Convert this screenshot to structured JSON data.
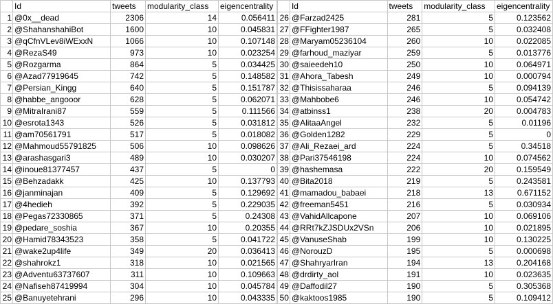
{
  "columns": {
    "rownum": "",
    "id": "Id",
    "tweets": "tweets",
    "modularity_class": "modularity_class",
    "eigencentrality": "eigencentrality"
  },
  "left_rows": [
    {
      "rownum": "1",
      "id": "@0x__dead",
      "tweets": "2306",
      "modularity_class": "14",
      "eigencentrality": "0.056411"
    },
    {
      "rownum": "2",
      "id": "@ShahanshahiBot",
      "tweets": "1600",
      "modularity_class": "10",
      "eigencentrality": "0.045831"
    },
    {
      "rownum": "3",
      "id": "@qCfnVLev8iWExxN",
      "tweets": "1066",
      "modularity_class": "10",
      "eigencentrality": "0.107148"
    },
    {
      "rownum": "4",
      "id": "@RezaS49",
      "tweets": "973",
      "modularity_class": "10",
      "eigencentrality": "0.023254"
    },
    {
      "rownum": "5",
      "id": "@Rozgarma",
      "tweets": "864",
      "modularity_class": "5",
      "eigencentrality": "0.034425"
    },
    {
      "rownum": "6",
      "id": "@Azad77919645",
      "tweets": "742",
      "modularity_class": "5",
      "eigencentrality": "0.148582"
    },
    {
      "rownum": "7",
      "id": "@Persian_Kingg",
      "tweets": "640",
      "modularity_class": "5",
      "eigencentrality": "0.151787"
    },
    {
      "rownum": "8",
      "id": "@habbe_angooor",
      "tweets": "628",
      "modularity_class": "5",
      "eigencentrality": "0.062071"
    },
    {
      "rownum": "9",
      "id": "@MitraIrani87",
      "tweets": "559",
      "modularity_class": "5",
      "eigencentrality": "0.111566"
    },
    {
      "rownum": "10",
      "id": "@esrota1343",
      "tweets": "526",
      "modularity_class": "5",
      "eigencentrality": "0.031812"
    },
    {
      "rownum": "11",
      "id": "@am70561791",
      "tweets": "517",
      "modularity_class": "5",
      "eigencentrality": "0.018082"
    },
    {
      "rownum": "12",
      "id": "@Mahmoud55791825",
      "tweets": "506",
      "modularity_class": "10",
      "eigencentrality": "0.098626"
    },
    {
      "rownum": "13",
      "id": "@arashasgari3",
      "tweets": "489",
      "modularity_class": "10",
      "eigencentrality": "0.030207"
    },
    {
      "rownum": "14",
      "id": "@inoue81377457",
      "tweets": "437",
      "modularity_class": "5",
      "eigencentrality": "0"
    },
    {
      "rownum": "15",
      "id": "@Behzadakk",
      "tweets": "425",
      "modularity_class": "10",
      "eigencentrality": "0.137793"
    },
    {
      "rownum": "16",
      "id": "@janminajan",
      "tweets": "409",
      "modularity_class": "5",
      "eigencentrality": "0.129692"
    },
    {
      "rownum": "17",
      "id": "@4hedieh",
      "tweets": "392",
      "modularity_class": "5",
      "eigencentrality": "0.229035"
    },
    {
      "rownum": "18",
      "id": "@Pegas72330865",
      "tweets": "371",
      "modularity_class": "5",
      "eigencentrality": "0.24308"
    },
    {
      "rownum": "19",
      "id": "@pedare_soshia",
      "tweets": "367",
      "modularity_class": "10",
      "eigencentrality": "0.20355"
    },
    {
      "rownum": "20",
      "id": "@Hamid78343523",
      "tweets": "358",
      "modularity_class": "5",
      "eigencentrality": "0.041722"
    },
    {
      "rownum": "21",
      "id": "@wake2up4life",
      "tweets": "349",
      "modularity_class": "20",
      "eigencentrality": "0.036413"
    },
    {
      "rownum": "22",
      "id": "@shahrokz1",
      "tweets": "318",
      "modularity_class": "10",
      "eigencentrality": "0.021565"
    },
    {
      "rownum": "23",
      "id": "@Adventu63737607",
      "tweets": "311",
      "modularity_class": "10",
      "eigencentrality": "0.109663"
    },
    {
      "rownum": "24",
      "id": "@Nafiseh87419994",
      "tweets": "304",
      "modularity_class": "10",
      "eigencentrality": "0.045784"
    },
    {
      "rownum": "25",
      "id": "@Banuyetehrani",
      "tweets": "296",
      "modularity_class": "10",
      "eigencentrality": "0.043335"
    }
  ],
  "right_rows": [
    {
      "rownum": "26",
      "id": "@Farzad2425",
      "tweets": "281",
      "modularity_class": "5",
      "eigencentrality": "0.123562"
    },
    {
      "rownum": "27",
      "id": "@FFighter1987",
      "tweets": "265",
      "modularity_class": "5",
      "eigencentrality": "0.032408"
    },
    {
      "rownum": "28",
      "id": "@Maryam05236104",
      "tweets": "260",
      "modularity_class": "10",
      "eigencentrality": "0.022085"
    },
    {
      "rownum": "29",
      "id": "@farhoud_maziyar",
      "tweets": "259",
      "modularity_class": "5",
      "eigencentrality": "0.013776"
    },
    {
      "rownum": "30",
      "id": "@saieedeh10",
      "tweets": "250",
      "modularity_class": "10",
      "eigencentrality": "0.064971"
    },
    {
      "rownum": "31",
      "id": "@Ahora_Tabesh",
      "tweets": "249",
      "modularity_class": "10",
      "eigencentrality": "0.000794"
    },
    {
      "rownum": "32",
      "id": "@Thisissaharaa",
      "tweets": "246",
      "modularity_class": "5",
      "eigencentrality": "0.094139"
    },
    {
      "rownum": "33",
      "id": "@Mahbobe6",
      "tweets": "246",
      "modularity_class": "10",
      "eigencentrality": "0.054742"
    },
    {
      "rownum": "34",
      "id": "@atbinss1",
      "tweets": "238",
      "modularity_class": "20",
      "eigencentrality": "0.004783"
    },
    {
      "rownum": "35",
      "id": "@AlitaaAngel",
      "tweets": "232",
      "modularity_class": "5",
      "eigencentrality": "0.01196"
    },
    {
      "rownum": "36",
      "id": "@Golden1282",
      "tweets": "229",
      "modularity_class": "5",
      "eigencentrality": "0"
    },
    {
      "rownum": "37",
      "id": "@Ali_Rezaei_ard",
      "tweets": "224",
      "modularity_class": "5",
      "eigencentrality": "0.34518"
    },
    {
      "rownum": "38",
      "id": "@Pari37546198",
      "tweets": "224",
      "modularity_class": "10",
      "eigencentrality": "0.074562"
    },
    {
      "rownum": "39",
      "id": "@hashemasa",
      "tweets": "222",
      "modularity_class": "20",
      "eigencentrality": "0.159549"
    },
    {
      "rownum": "40",
      "id": "@Bita2018",
      "tweets": "219",
      "modularity_class": "5",
      "eigencentrality": "0.243581"
    },
    {
      "rownum": "41",
      "id": "@mamadou_babaei",
      "tweets": "218",
      "modularity_class": "13",
      "eigencentrality": "0.671152"
    },
    {
      "rownum": "42",
      "id": "@freeman5451",
      "tweets": "216",
      "modularity_class": "5",
      "eigencentrality": "0.030934"
    },
    {
      "rownum": "43",
      "id": "@VahidAllcapone",
      "tweets": "207",
      "modularity_class": "10",
      "eigencentrality": "0.069106"
    },
    {
      "rownum": "44",
      "id": "@RRt7kZJSDUx2VSn",
      "tweets": "206",
      "modularity_class": "10",
      "eigencentrality": "0.021895"
    },
    {
      "rownum": "45",
      "id": "@VanuseShab",
      "tweets": "199",
      "modularity_class": "10",
      "eigencentrality": "0.130225"
    },
    {
      "rownum": "46",
      "id": "@NorouzD",
      "tweets": "195",
      "modularity_class": "5",
      "eigencentrality": "0.000698"
    },
    {
      "rownum": "47",
      "id": "@ShahryarIran",
      "tweets": "194",
      "modularity_class": "13",
      "eigencentrality": "0.204168"
    },
    {
      "rownum": "48",
      "id": "@drdirty_aol",
      "tweets": "191",
      "modularity_class": "10",
      "eigencentrality": "0.023635"
    },
    {
      "rownum": "49",
      "id": "@Daffodil27",
      "tweets": "190",
      "modularity_class": "5",
      "eigencentrality": "0.305368"
    },
    {
      "rownum": "50",
      "id": "@kaktoos1985",
      "tweets": "190",
      "modularity_class": "5",
      "eigencentrality": "0.109412"
    }
  ]
}
